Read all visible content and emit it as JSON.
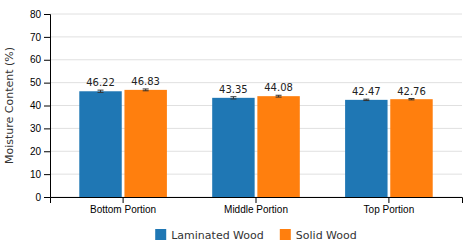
{
  "chart_data": {
    "type": "bar",
    "categories": [
      "Bottom Portion",
      "Middle Portion",
      "Top Portion"
    ],
    "series": [
      {
        "name": "Laminated Wood",
        "values": [
          46.22,
          43.35,
          42.47
        ],
        "errors": [
          0.5,
          0.5,
          0.3
        ]
      },
      {
        "name": "Solid Wood",
        "values": [
          46.83,
          44.08,
          42.76
        ],
        "errors": [
          0.4,
          0.4,
          0.3
        ]
      }
    ],
    "ylabel": "Moisture Content (%)",
    "ylim": [
      0,
      80
    ],
    "yticks": [
      0,
      10,
      20,
      30,
      40,
      50,
      60,
      70,
      80
    ],
    "grid": true,
    "data_labels": true,
    "legend": "bottom"
  }
}
